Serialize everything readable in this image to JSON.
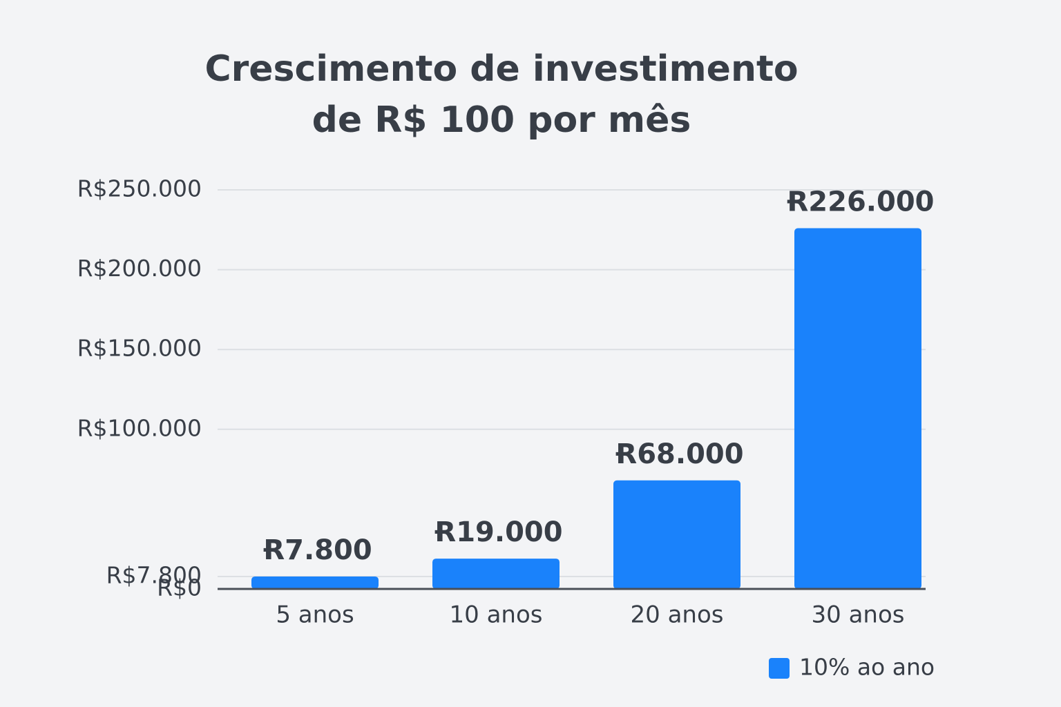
{
  "chart_data": {
    "type": "bar",
    "title": [
      "Crescimento de investimento",
      "de R$ 100 por mês"
    ],
    "categories": [
      "5 anos",
      "10 anos",
      "20 anos",
      "30 anos"
    ],
    "series": [
      {
        "name": "10% ao ano",
        "color": "#1a82fb",
        "values": [
          7800,
          19000,
          68000,
          226000
        ],
        "value_labels": [
          "Ɍ7.800",
          "Ɍ19.000",
          "Ɍ68.000",
          "Ɍ226.000"
        ]
      }
    ],
    "ylim": [
      0,
      250000
    ],
    "yticks": [
      {
        "value": 0,
        "label": "R$0"
      },
      {
        "value": 7800,
        "label": "R$7.800"
      },
      {
        "value": 100000,
        "label": "R$100.000"
      },
      {
        "value": 150000,
        "label": "R$150.000"
      },
      {
        "value": 200000,
        "label": "R$200.000"
      },
      {
        "value": 250000,
        "label": "R$250.000"
      }
    ],
    "grid": true,
    "legend": "bottom-right"
  }
}
